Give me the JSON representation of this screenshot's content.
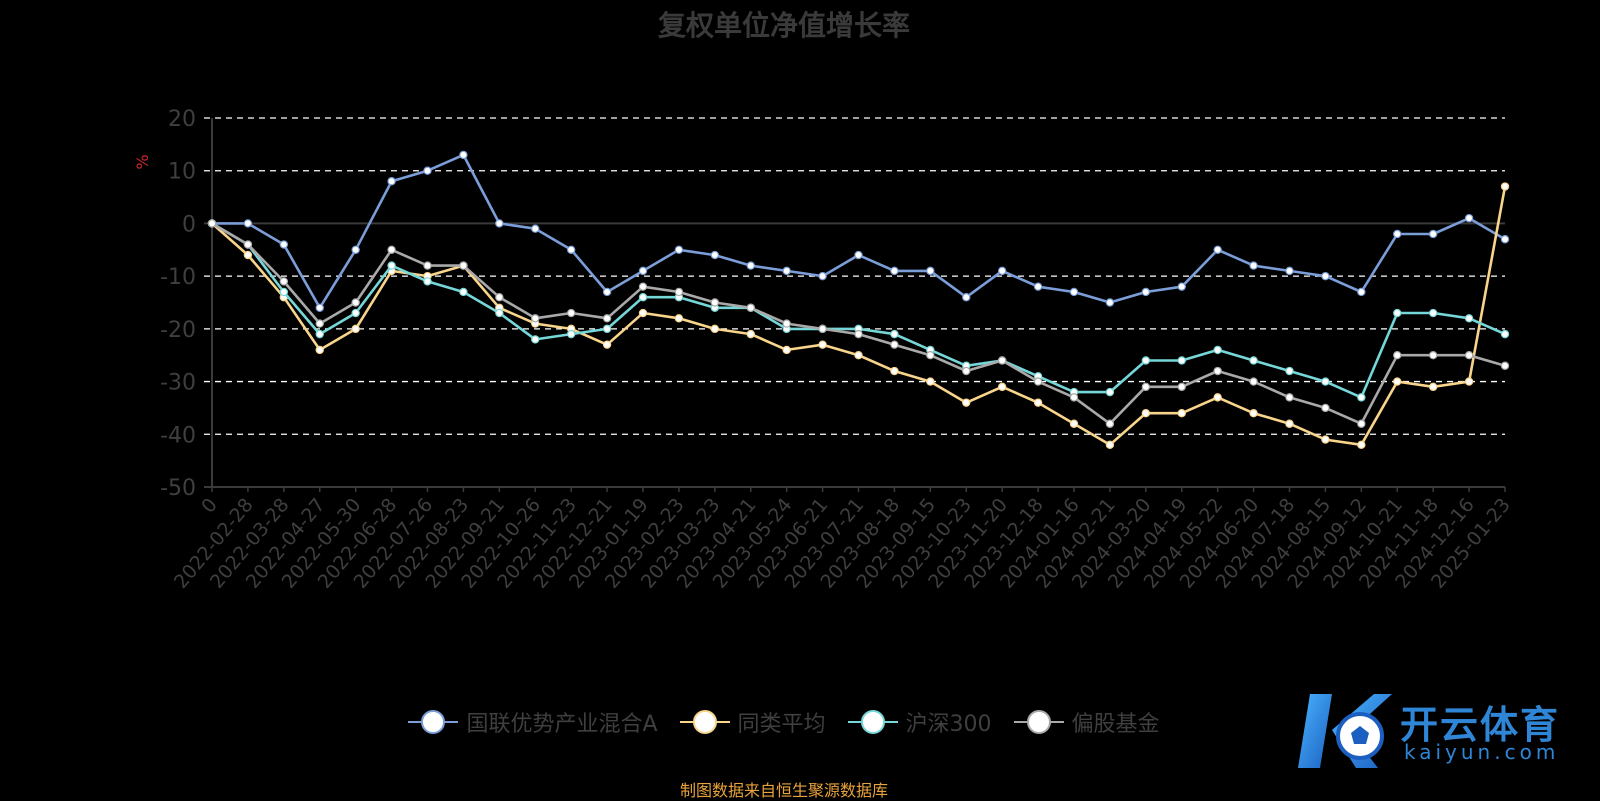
{
  "source_note": "制图数据来自恒生聚源数据库",
  "watermark": {
    "brand": "开云体育",
    "domain": "kaiyun.com",
    "logo_letter": "K"
  },
  "chart_data": {
    "type": "line",
    "title": "复权单位净值增长率",
    "ylabel": "%",
    "xlabel": "",
    "ylim": [
      -50,
      20
    ],
    "yticks": [
      20,
      10,
      0,
      -10,
      -20,
      -30,
      -40,
      -50
    ],
    "grid": true,
    "legend_position": "bottom",
    "x_categories": [
      "0",
      "2022-02-28",
      "2022-03-28",
      "2022-04-27",
      "2022-05-30",
      "2022-06-28",
      "2022-07-26",
      "2022-08-23",
      "2022-09-21",
      "2022-10-26",
      "2022-11-23",
      "2022-12-21",
      "2023-01-19",
      "2023-02-23",
      "2023-03-23",
      "2023-04-21",
      "2023-05-24",
      "2023-06-21",
      "2023-07-21",
      "2023-08-18",
      "2023-09-15",
      "2023-10-23",
      "2023-11-20",
      "2023-12-18",
      "2024-01-16",
      "2024-02-21",
      "2024-03-20",
      "2024-04-19",
      "2024-05-22",
      "2024-06-20",
      "2024-07-18",
      "2024-08-15",
      "2024-09-12",
      "2024-10-21",
      "2024-11-18",
      "2024-12-16",
      "2025-01-23"
    ],
    "series": [
      {
        "name": "国联优势产业混合A",
        "color": "#7b9ed9",
        "values": [
          0,
          0,
          -4,
          -16,
          -5,
          8,
          10,
          13,
          0,
          -1,
          -5,
          -13,
          -9,
          -5,
          -6,
          -8,
          -9,
          -10,
          -6,
          -9,
          -9,
          -14,
          -9,
          -12,
          -13,
          -15,
          -13,
          -12,
          -5,
          -8,
          -9,
          -10,
          -13,
          -2,
          -2,
          1,
          -3
        ]
      },
      {
        "name": "同类平均",
        "color": "#f9d48b",
        "values": [
          0,
          -6,
          -14,
          -24,
          -20,
          -9,
          -10,
          -8,
          -16,
          -19,
          -20,
          -23,
          -17,
          -18,
          -20,
          -21,
          -24,
          -23,
          -25,
          -28,
          -30,
          -34,
          -31,
          -34,
          -38,
          -42,
          -36,
          -36,
          -33,
          -36,
          -38,
          -41,
          -42,
          -30,
          -31,
          -30,
          7
        ]
      },
      {
        "name": "沪深300",
        "color": "#76d7d8",
        "values": [
          0,
          -4,
          -13,
          -21,
          -17,
          -8,
          -11,
          -13,
          -17,
          -22,
          -21,
          -20,
          -14,
          -14,
          -16,
          -16,
          -20,
          -20,
          -20,
          -21,
          -24,
          -27,
          -26,
          -29,
          -32,
          -32,
          -26,
          -26,
          -24,
          -26,
          -28,
          -30,
          -33,
          -17,
          -17,
          -18,
          -21
        ]
      },
      {
        "name": "偏股基金",
        "color": "#a9a9a9",
        "values": [
          0,
          -4,
          -11,
          -19,
          -15,
          -5,
          -8,
          -8,
          -14,
          -18,
          -17,
          -18,
          -12,
          -13,
          -15,
          -16,
          -19,
          -20,
          -21,
          -23,
          -25,
          -28,
          -26,
          -30,
          -33,
          -38,
          -31,
          -31,
          -28,
          -30,
          -33,
          -35,
          -38,
          -25,
          -25,
          -25,
          -27
        ]
      }
    ]
  }
}
